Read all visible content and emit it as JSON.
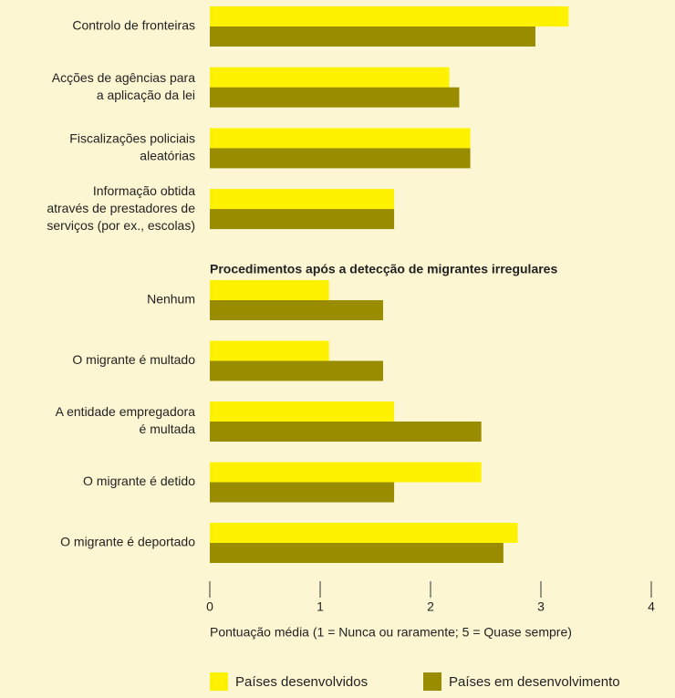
{
  "chart_data": {
    "type": "hbar",
    "categories": [
      [
        "Controlo de fronteiras"
      ],
      [
        "Acções de agências para",
        "a aplicação da lei"
      ],
      [
        "Fiscalizações policiais",
        "aleatórias"
      ],
      [
        "Informação obtida",
        "através de prestadores de",
        "serviços (por ex., escolas)"
      ],
      [
        "Nenhum"
      ],
      [
        "O migrante é multado"
      ],
      [
        "A entidade  empregadora",
        "é multada"
      ],
      [
        "O migrante é detido"
      ],
      [
        "O migrante é deportado"
      ]
    ],
    "section_title": "Procedimentos após a detecção de migrantes irregulares",
    "series": [
      {
        "name": "Países desenvolvidos",
        "color": "#fff200",
        "values": [
          3.25,
          2.17,
          2.36,
          1.67,
          1.08,
          1.08,
          1.67,
          2.46,
          2.79
        ]
      },
      {
        "name": "Países em desenvolvimento",
        "color": "#9a8c00",
        "values": [
          2.95,
          2.26,
          2.36,
          1.67,
          1.57,
          1.57,
          2.46,
          1.67,
          2.66
        ]
      }
    ],
    "xlim": [
      0,
      4
    ],
    "xticks": [
      0,
      1,
      2,
      3,
      4
    ],
    "x_label": "Pontuação média (1 = Nunca ou raramente; 5 = Quase sempre)"
  }
}
